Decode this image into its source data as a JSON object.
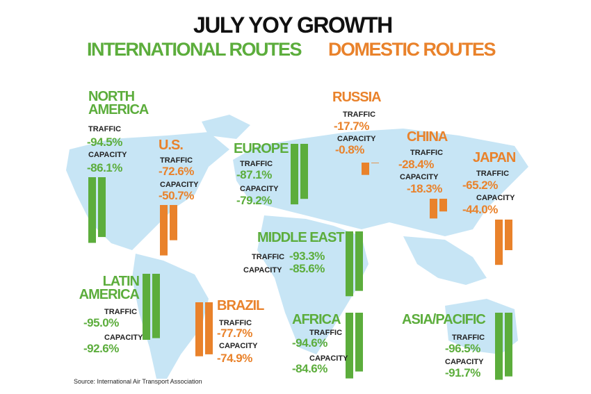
{
  "chart_data": {
    "type": "bar",
    "title": "JULY YOY GROWTH",
    "legend": [
      {
        "name": "INTERNATIONAL ROUTES",
        "color": "#5cad3c"
      },
      {
        "name": "DOMESTIC ROUTES",
        "color": "#e9822b"
      }
    ],
    "metrics": [
      "TRAFFIC",
      "CAPACITY"
    ],
    "regions": [
      {
        "name": "NORTH AMERICA",
        "color": "#5cad3c",
        "values": [
          -94.5,
          -86.1
        ],
        "value_labels": [
          "-94.5%",
          "-86.1%"
        ]
      },
      {
        "name": "U.S.",
        "color": "#e9822b",
        "values": [
          -72.6,
          -50.7
        ],
        "value_labels": [
          "-72.6%",
          "-50.7%"
        ]
      },
      {
        "name": "EUROPE",
        "color": "#5cad3c",
        "values": [
          -87.1,
          -79.2
        ],
        "value_labels": [
          "-87.1%",
          "-79.2%"
        ]
      },
      {
        "name": "RUSSIA",
        "color": "#e9822b",
        "values": [
          -17.7,
          -0.8
        ],
        "value_labels": [
          "-17.7%",
          "-0.8%"
        ]
      },
      {
        "name": "CHINA",
        "color": "#e9822b",
        "values": [
          -28.4,
          -18.3
        ],
        "value_labels": [
          "-28.4%",
          "-18.3%"
        ]
      },
      {
        "name": "JAPAN",
        "color": "#e9822b",
        "values": [
          -65.2,
          -44.0
        ],
        "value_labels": [
          "-65.2%",
          "-44.0%"
        ]
      },
      {
        "name": "MIDDLE EAST",
        "color": "#5cad3c",
        "values": [
          -93.3,
          -85.6
        ],
        "value_labels": [
          "-93.3%",
          "-85.6%"
        ]
      },
      {
        "name": "LATIN AMERICA",
        "color": "#5cad3c",
        "values": [
          -95.0,
          -92.6
        ],
        "value_labels": [
          "-95.0%",
          "-92.6%"
        ]
      },
      {
        "name": "BRAZIL",
        "color": "#e9822b",
        "values": [
          -77.7,
          -74.9
        ],
        "value_labels": [
          "-77.7%",
          "-74.9%"
        ]
      },
      {
        "name": "AFRICA",
        "color": "#5cad3c",
        "values": [
          -94.6,
          -84.6
        ],
        "value_labels": [
          "-94.6%",
          "-84.6%"
        ]
      },
      {
        "name": "ASIA/PACIFIC",
        "color": "#5cad3c",
        "values": [
          -96.5,
          -91.7
        ],
        "value_labels": [
          "-96.5%",
          "-91.7%"
        ]
      }
    ],
    "source": "Source: International Air Transport Association"
  }
}
